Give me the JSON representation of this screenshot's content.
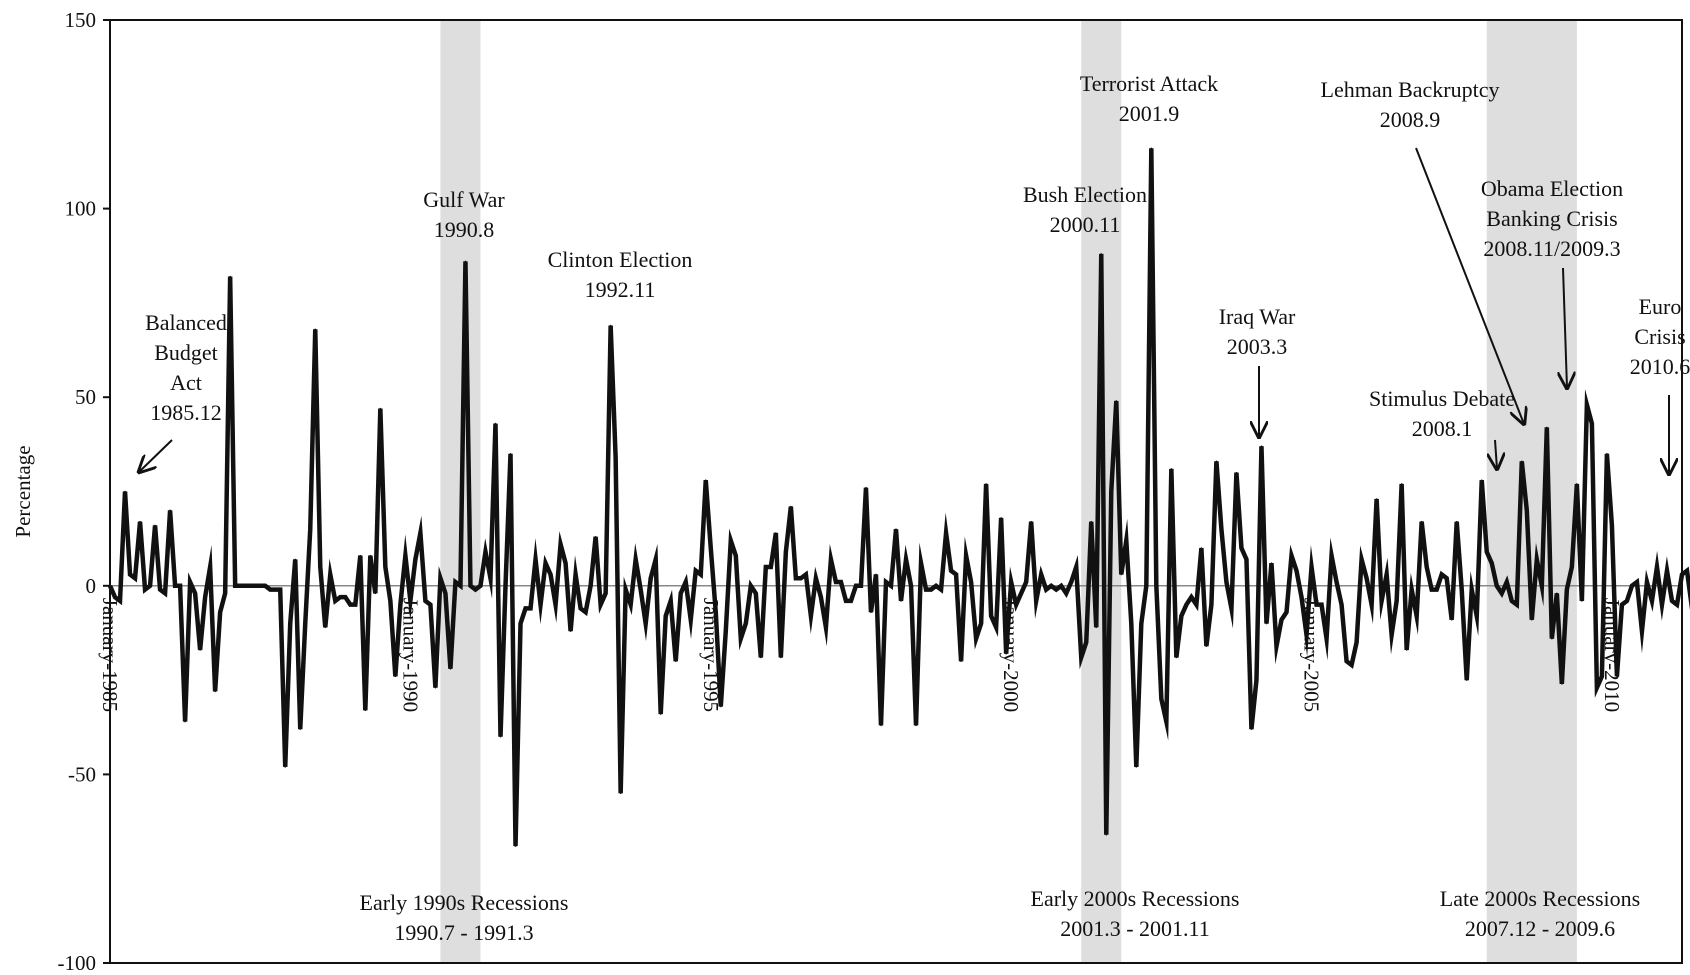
{
  "chart_data": {
    "type": "line",
    "title": "",
    "xlabel": "",
    "ylabel": "Percentage",
    "ylim": [
      -100,
      150
    ],
    "xlim": [
      "1985-01",
      "2011-03"
    ],
    "yticks": [
      150,
      100,
      50,
      0,
      -50,
      -100
    ],
    "xticks": [
      {
        "x": "1985-01",
        "label": "January-1985"
      },
      {
        "x": "1990-01",
        "label": "January-1990"
      },
      {
        "x": "1995-01",
        "label": "January-1995"
      },
      {
        "x": "2000-01",
        "label": "January-2000"
      },
      {
        "x": "2005-01",
        "label": "January-2005"
      },
      {
        "x": "2010-01",
        "label": "January-2010"
      }
    ],
    "grid": false,
    "legend": "none",
    "series_color": "#111111",
    "recession_color": "#dedede",
    "recessions": [
      {
        "start": "1990-07",
        "end": "1991-03",
        "label": "Early 1990s Recessions",
        "period": "1990.7 - 1991.3"
      },
      {
        "start": "2001-03",
        "end": "2001-11",
        "label": "Early 2000s Recessions",
        "period": "2001.3 - 2001.11"
      },
      {
        "start": "2007-12",
        "end": "2009-06",
        "label": "Late 2000s Recessions",
        "period": "2007.12 -  2009.6"
      }
    ],
    "annotations": [
      {
        "lines": [
          "Balanced",
          "Budget",
          "Act",
          "1985.12"
        ],
        "x": "1985-12",
        "y": 30,
        "arrow": true
      },
      {
        "lines": [
          "Gulf War",
          "1990.8"
        ],
        "x": "1990-08",
        "y": 86,
        "arrow": false
      },
      {
        "lines": [
          "Clinton Election",
          "1992.11"
        ],
        "x": "1992-11",
        "y": 70,
        "arrow": false
      },
      {
        "lines": [
          "Bush Election",
          "2000.11"
        ],
        "x": "2000-11",
        "y": 88,
        "arrow": false
      },
      {
        "lines": [
          "Terrorist Attack",
          "2001.9"
        ],
        "x": "2001-09",
        "y": 117,
        "arrow": false
      },
      {
        "lines": [
          "Iraq War",
          "2003.3"
        ],
        "x": "2003-03",
        "y": 38,
        "arrow": true
      },
      {
        "lines": [
          "Lehman Backruptcy",
          "2008.9"
        ],
        "x": "2008-09",
        "y": 42,
        "arrow": true
      },
      {
        "lines": [
          "Stimulus Debate",
          "2008.1"
        ],
        "x": "2008-01",
        "y": 32,
        "arrow": true
      },
      {
        "lines": [
          "Obama Election",
          "Banking Crisis",
          "2008.11/2009.3"
        ],
        "x": "2009-03",
        "y": 50,
        "arrow": true
      },
      {
        "lines": [
          "Euro",
          "Crisis",
          "2010.6"
        ],
        "x": "2010-06",
        "y": 27,
        "arrow": true
      }
    ],
    "start": "1985-01",
    "values": [
      0,
      -3,
      -4,
      25,
      3,
      2,
      17,
      -1,
      0,
      16,
      -1,
      -2,
      20,
      0,
      0,
      -36,
      1,
      -2,
      -17,
      -3,
      5,
      -28,
      -7,
      -2,
      82,
      0,
      0,
      0,
      0,
      0,
      0,
      0,
      -1,
      -1,
      -1,
      -48,
      -10,
      7,
      -38,
      -10,
      15,
      68,
      5,
      -11,
      3,
      -4,
      -3,
      -3,
      -5,
      -5,
      8,
      -33,
      8,
      -2,
      47,
      5,
      -4,
      -24,
      -5,
      8,
      -4,
      7,
      14,
      -4,
      -5,
      -27,
      2,
      -2,
      -22,
      1,
      0,
      86,
      0,
      -1,
      0,
      9,
      2,
      43,
      -40,
      0,
      35,
      -69,
      -10,
      -6,
      -6,
      7,
      -5,
      6,
      3,
      -5,
      11,
      6,
      -12,
      3,
      -6,
      -7,
      0,
      13,
      -5,
      -2,
      69,
      34,
      -55,
      -1,
      -5,
      7,
      -1,
      -10,
      2,
      7,
      -34,
      -8,
      -4,
      -20,
      -2,
      1,
      -9,
      4,
      3,
      28,
      10,
      -7,
      -32,
      -12,
      12,
      8,
      -14,
      -10,
      0,
      -2,
      -19,
      5,
      5,
      14,
      -19,
      9,
      21,
      2,
      2,
      3,
      -8,
      2,
      -3,
      -11,
      7,
      1,
      1,
      -4,
      -4,
      0,
      0,
      26,
      -7,
      3,
      -37,
      1,
      0,
      15,
      -4,
      7,
      0,
      -37,
      6,
      -1,
      -1,
      0,
      -1,
      14,
      4,
      3,
      -20,
      8,
      1,
      -14,
      -10,
      27,
      -8,
      -11,
      18,
      -18,
      1,
      -5,
      -2,
      1,
      17,
      -4,
      3,
      -1,
      0,
      -1,
      0,
      -2,
      1,
      5,
      -19,
      -15,
      17,
      -11,
      88,
      -66,
      25,
      49,
      3,
      12,
      -10,
      -48,
      -10,
      0,
      116,
      0,
      -30,
      -36,
      31,
      -19,
      -8,
      -5,
      -3,
      -5,
      10,
      -16,
      -5,
      33,
      15,
      1,
      -6,
      30,
      10,
      7,
      -38,
      -25,
      37,
      -10,
      6,
      -16,
      -9,
      -7,
      8,
      4,
      -3,
      -13,
      5,
      -5,
      -5,
      -14,
      8,
      1,
      -5,
      -20,
      -21,
      -15,
      7,
      2,
      -5,
      23,
      -4,
      3,
      -13,
      -4,
      27,
      -17,
      -1,
      -8,
      17,
      5,
      -1,
      -1,
      3,
      2,
      -9,
      17,
      -1,
      -25,
      -1,
      -8,
      28,
      9,
      6,
      0,
      -2,
      1,
      -4,
      -5,
      33,
      20,
      -9,
      7,
      0,
      42,
      -14,
      -2,
      -26,
      -1,
      5,
      27,
      -4,
      48,
      43,
      -27,
      -24,
      35,
      16,
      -24,
      -5,
      -4,
      0,
      1,
      -12,
      1,
      -4,
      5,
      -5,
      4,
      -4,
      -5,
      3,
      4,
      -6,
      -7,
      25,
      -3,
      11
    ]
  }
}
